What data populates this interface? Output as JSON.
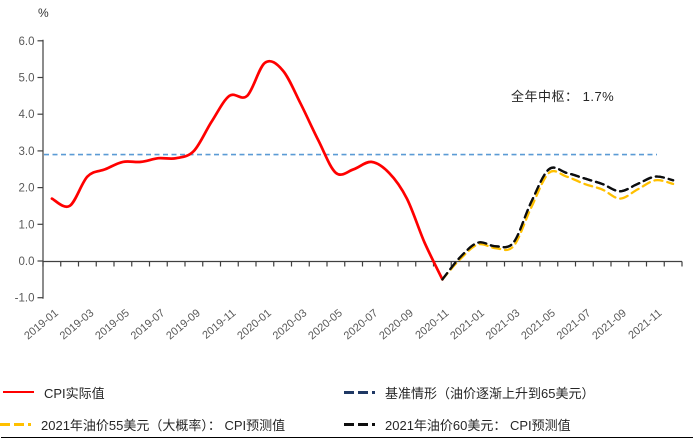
{
  "chart_data": {
    "type": "line",
    "unit_label": "%",
    "annotation": "全年中枢： 1.7%",
    "grid": false,
    "ylim": [
      -1.0,
      6.0
    ],
    "y_tick_labels": [
      "6.0",
      "5.0",
      "4.0",
      "3.0",
      "2.0",
      "1.0",
      "0.0",
      "-1.0"
    ],
    "x_tick_labels": [
      "2019-01",
      "2019-03",
      "2019-05",
      "2019-07",
      "2019-09",
      "2019-11",
      "2020-01",
      "2020-03",
      "2020-05",
      "2020-07",
      "2020-09",
      "2020-11",
      "2021-01",
      "2021-03",
      "2021-05",
      "2021-07",
      "2021-09",
      "2021-11"
    ],
    "x_label_step_months": 2,
    "reference_line": {
      "value": 2.9,
      "color": "#5B9BD5",
      "style": "dotted"
    },
    "series": [
      {
        "name": "CPI实际值",
        "color": "#FF0000",
        "style": "solid",
        "start_month": "2019-01",
        "start_index": 0,
        "values": [
          1.7,
          1.5,
          2.3,
          2.5,
          2.7,
          2.7,
          2.8,
          2.8,
          3.0,
          3.8,
          4.5,
          4.5,
          5.4,
          5.2,
          4.3,
          3.3,
          2.4,
          2.5,
          2.7,
          2.4,
          1.7,
          0.5,
          -0.5
        ]
      },
      {
        "name": "基准情形（油价逐渐上升到65美元）",
        "color": "#1F3864",
        "style": "dashed",
        "start_month": "2020-11",
        "start_index": 22,
        "values": [
          -0.5,
          0.1,
          0.5,
          0.4,
          0.5,
          1.6,
          2.5,
          2.4,
          2.25,
          2.1,
          1.9,
          2.1,
          2.3,
          2.2
        ]
      },
      {
        "name": "2021年油价55美元（大概率）： CPI预测值",
        "color": "#FFC000",
        "style": "dashed",
        "start_month": "2020-11",
        "start_index": 22,
        "values": [
          -0.5,
          0.05,
          0.45,
          0.35,
          0.4,
          1.45,
          2.4,
          2.3,
          2.1,
          1.95,
          1.7,
          1.95,
          2.2,
          2.1
        ]
      },
      {
        "name": "2021年油价60美元： CPI预测值",
        "color": "#0d0d0d",
        "style": "dashed",
        "start_month": "2020-11",
        "start_index": 22,
        "values": [
          -0.5,
          0.1,
          0.5,
          0.4,
          0.5,
          1.6,
          2.5,
          2.4,
          2.25,
          2.1,
          1.9,
          2.1,
          2.3,
          2.2
        ]
      }
    ],
    "legend_position": "bottom"
  },
  "legend": {
    "items": [
      {
        "label": "CPI实际值",
        "series_index": 0
      },
      {
        "label": "基准情形（油价逐渐上升到65美元）",
        "series_index": 1
      },
      {
        "label": "2021年油价55美元（大概率）： CPI预测值",
        "series_index": 2
      },
      {
        "label": "2021年油价60美元： CPI预测值",
        "series_index": 3
      }
    ]
  }
}
